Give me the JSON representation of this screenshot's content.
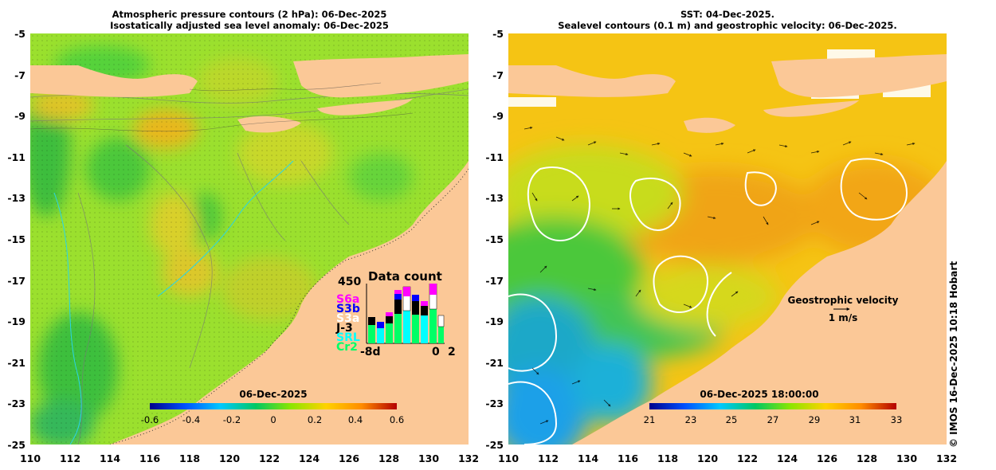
{
  "left": {
    "title_line1": "Atmospheric pressure contours (2 hPa): 06-Dec-2025",
    "title_line2": "Isostatically adjusted sea level anomaly: 06-Dec-2025",
    "colorbar_label": "06-Dec-2025",
    "colorbar_ticks": [
      "-0.6",
      "-0.4",
      "-0.2",
      "0",
      "0.2",
      "0.4",
      "0.6"
    ],
    "colors": [
      "#00008c",
      "#0050ff",
      "#00c8ff",
      "#00c864",
      "#8ce600",
      "#ffd200",
      "#ff8c00",
      "#b40000"
    ],
    "data_count": {
      "title": "Data count",
      "max": "450",
      "missions": [
        {
          "label": "S6a",
          "color": "#ff00ff"
        },
        {
          "label": "S3b",
          "color": "#0000ff"
        },
        {
          "label": "S3a",
          "color": "#ffffff"
        },
        {
          "label": "J-3",
          "color": "#000000"
        },
        {
          "label": "SRL",
          "color": "#00ffff"
        },
        {
          "label": "Cr2",
          "color": "#00ff66"
        }
      ],
      "x_start": "-8d",
      "x_end_0": "0",
      "x_end_2": "2"
    }
  },
  "right": {
    "title_line1": "SST: 04-Dec-2025.",
    "title_line2": "Sealevel contours (0.1 m) and geostrophic velocity: 06-Dec-2025.",
    "colorbar_label": "06-Dec-2025 18:00:00",
    "colorbar_ticks": [
      "21",
      "23",
      "25",
      "27",
      "29",
      "31",
      "33"
    ],
    "colors": [
      "#00008c",
      "#0050ff",
      "#00c8ff",
      "#00c864",
      "#8ce600",
      "#ffd200",
      "#ff8c00",
      "#b40000"
    ],
    "legend_title": "Geostrophic velocity",
    "legend_scale": "1 m/s"
  },
  "axes": {
    "y_ticks": [
      "-5",
      "-7",
      "-9",
      "-11",
      "-13",
      "-15",
      "-17",
      "-19",
      "-21",
      "-23",
      "-25"
    ],
    "x_ticks": [
      "110",
      "112",
      "114",
      "116",
      "118",
      "120",
      "122",
      "124",
      "126",
      "128",
      "130",
      "132"
    ]
  },
  "land_color": "#fbc897",
  "credit": "© IMOS 16-Dec-2025 10:18 Hobart"
}
